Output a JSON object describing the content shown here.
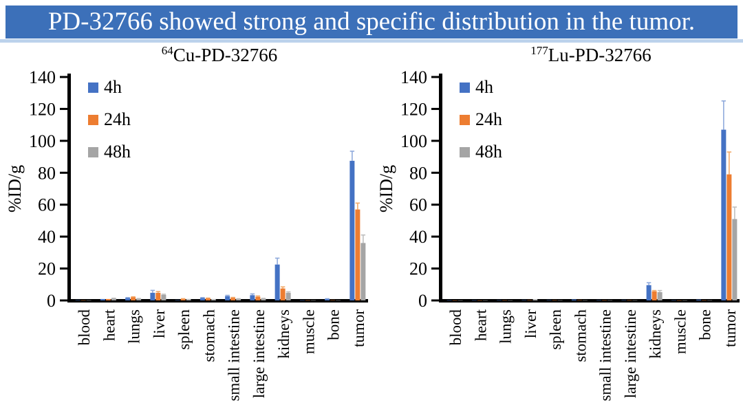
{
  "banner": {
    "title": "PD-32766 showed strong and specific distribution in the tumor."
  },
  "colors": {
    "banner_bg": "#3C70B9",
    "banner_strip": "#BCD2EC",
    "axis": "#000000",
    "series_4h": "#4472C4",
    "series_24h": "#ED7D31",
    "series_48h": "#A5A5A5",
    "error_4h": "#8FAADC",
    "error_24h": "#F2A969",
    "error_48h": "#BFBFBF"
  },
  "legend": {
    "items": [
      {
        "label": "4h",
        "color": "#4472C4"
      },
      {
        "label": "24h",
        "color": "#ED7D31"
      },
      {
        "label": "48h",
        "color": "#A5A5A5"
      }
    ]
  },
  "chart_data": [
    {
      "type": "bar",
      "title_sup": "64",
      "title_main": "Cu-PD-32766",
      "ylabel": "%ID/g",
      "ylim": [
        0,
        140
      ],
      "ytick_step": 20,
      "yticks": [
        0,
        20,
        40,
        60,
        80,
        100,
        120,
        140
      ],
      "legend_position": "top-left-inside",
      "grid": false,
      "categories": [
        "blood",
        "heart",
        "lungs",
        "liver",
        "spleen",
        "stomach",
        "small intestine",
        "large intestine",
        "kidneys",
        "muscle",
        "bone",
        "tumor"
      ],
      "series": [
        {
          "name": "4h",
          "color": "#4472C4",
          "error_color": "#8FAADC",
          "values": [
            0.2,
            0.9,
            1.5,
            4.8,
            0.2,
            1.5,
            2.7,
            3.3,
            22.5,
            0.1,
            0.9,
            87.5
          ],
          "errors": [
            0,
            0,
            0.3,
            1.5,
            0,
            0.3,
            0.5,
            0.8,
            4,
            0,
            0.2,
            6
          ]
        },
        {
          "name": "24h",
          "color": "#ED7D31",
          "error_color": "#F2A969",
          "values": [
            0.1,
            0.9,
            2.0,
            4.8,
            0.9,
            1.3,
            1.6,
            2.3,
            7.5,
            0.1,
            0.2,
            57
          ],
          "errors": [
            0,
            0,
            0.3,
            0.8,
            0.2,
            0.2,
            0.3,
            0.5,
            1,
            0,
            0,
            4
          ]
        },
        {
          "name": "48h",
          "color": "#A5A5A5",
          "error_color": "#BFBFBF",
          "values": [
            0.1,
            1.2,
            1.0,
            3.5,
            0.5,
            0.5,
            0.9,
            1.1,
            4.8,
            0.1,
            0.1,
            36
          ],
          "errors": [
            0,
            0.2,
            0.2,
            0.4,
            0.1,
            0.1,
            0.2,
            0.2,
            0.6,
            0,
            0,
            5
          ]
        }
      ]
    },
    {
      "type": "bar",
      "title_sup": "177",
      "title_main": "Lu-PD-32766",
      "ylabel": "%ID/g",
      "ylim": [
        0,
        140
      ],
      "ytick_step": 20,
      "yticks": [
        0,
        20,
        40,
        60,
        80,
        100,
        120,
        140
      ],
      "legend_position": "top-left-inside",
      "grid": false,
      "categories": [
        "blood",
        "heart",
        "lungs",
        "liver",
        "spleen",
        "stomach",
        "small intestine",
        "large intestine",
        "kidneys",
        "muscle",
        "bone",
        "tumor"
      ],
      "series": [
        {
          "name": "4h",
          "color": "#4472C4",
          "error_color": "#8FAADC",
          "values": [
            0.1,
            0.1,
            0.15,
            0.2,
            0.2,
            0.6,
            0.15,
            0.2,
            9.6,
            0.1,
            0.5,
            107
          ],
          "errors": [
            0,
            0,
            0,
            0,
            0,
            0,
            0,
            0,
            1.5,
            0,
            0,
            18
          ]
        },
        {
          "name": "24h",
          "color": "#ED7D31",
          "error_color": "#F2A969",
          "values": [
            0.05,
            0.05,
            0.1,
            0.2,
            0.15,
            0.2,
            0.1,
            0.15,
            5.7,
            0.05,
            0.1,
            79
          ],
          "errors": [
            0,
            0,
            0,
            0,
            0,
            0,
            0,
            0,
            0.5,
            0,
            0,
            14
          ]
        },
        {
          "name": "48h",
          "color": "#A5A5A5",
          "error_color": "#BFBFBF",
          "values": [
            0.05,
            0.05,
            0.05,
            0.4,
            0.1,
            0.1,
            0.1,
            0.1,
            5.2,
            0.05,
            0.1,
            51
          ],
          "errors": [
            0,
            0,
            0,
            0.1,
            0,
            0,
            0,
            0,
            1.0,
            0,
            0,
            7.5
          ]
        }
      ]
    }
  ]
}
